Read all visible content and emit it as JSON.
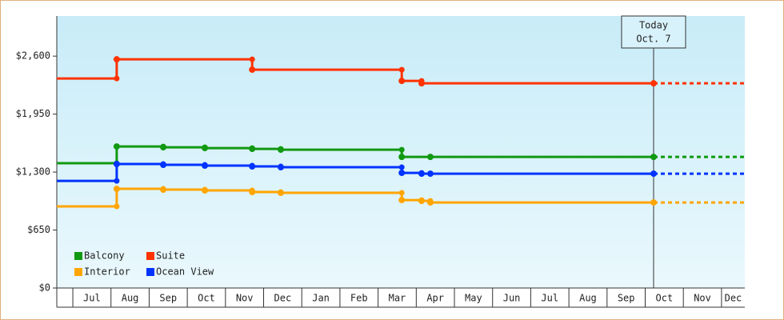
{
  "chart_data": {
    "type": "step",
    "categories": [
      "Jul",
      "Aug",
      "Sep",
      "Oct",
      "Nov",
      "Dec",
      "Jan",
      "Feb",
      "Mar",
      "Apr",
      "May",
      "Jun",
      "Jul",
      "Aug",
      "Sep",
      "Oct",
      "Nov",
      "Dec"
    ],
    "xlim": [
      -0.42,
      17.61
    ],
    "ylim": [
      0,
      3050
    ],
    "yticks": [
      {
        "value": 0,
        "label": "$0"
      },
      {
        "value": 650,
        "label": "$650"
      },
      {
        "value": 1300,
        "label": "$1,300"
      },
      {
        "value": 1950,
        "label": "$1,950"
      },
      {
        "value": 2600,
        "label": "$2,600"
      }
    ],
    "series": [
      {
        "name": "Balcony",
        "color": "#119911",
        "x": [
          -0.42,
          1.15,
          2.37,
          3.46,
          4.7,
          5.45,
          8.62,
          9.37,
          15.22
        ],
        "values": [
          1399,
          1587,
          1578,
          1569,
          1560,
          1551,
          1470,
          1470,
          1470
        ]
      },
      {
        "name": "Suite",
        "color": "#ff3300",
        "x": [
          -0.42,
          1.15,
          4.7,
          8.62,
          9.14,
          15.22
        ],
        "values": [
          2349,
          2564,
          2448,
          2322,
          2295,
          2295
        ]
      },
      {
        "name": "Interior",
        "color": "#ffa500",
        "x": [
          -0.42,
          1.15,
          2.37,
          3.46,
          4.7,
          5.45,
          8.62,
          9.14,
          9.37,
          15.22
        ],
        "values": [
          915,
          1112,
          1103,
          1094,
          1076,
          1067,
          986,
          977,
          959,
          959
        ]
      },
      {
        "name": "Ocean View",
        "color": "#0033ff",
        "x": [
          -0.42,
          1.15,
          2.37,
          3.46,
          4.7,
          5.45,
          8.62,
          9.14,
          9.37,
          15.22
        ],
        "values": [
          1201,
          1390,
          1381,
          1372,
          1363,
          1354,
          1291,
          1282,
          1282,
          1282
        ]
      }
    ],
    "today": {
      "x": 15.22,
      "label": [
        "Today",
        "Oct. 7"
      ]
    },
    "legend": "bottom-left"
  }
}
